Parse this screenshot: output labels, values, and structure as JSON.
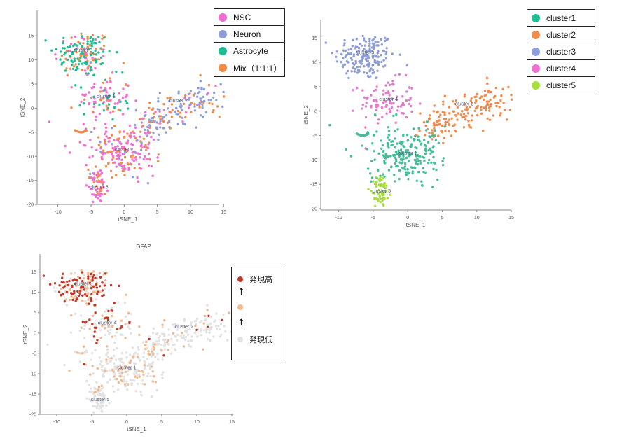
{
  "colors": {
    "NSC": "#ef6fd2",
    "Neuron": "#8f9fdc",
    "Astrocyte": "#1cbf93",
    "Mix": "#f28c4a",
    "cluster1": "#46bd9a",
    "cluster2": "#f08a4b",
    "cluster3": "#8d9dd5",
    "cluster4": "#e27bcc",
    "cluster5": "#a5dd3c",
    "expr_high": "#c0392b",
    "expr_mid": "#f2b98e",
    "expr_low": "#e2e2e2"
  },
  "legend_celltype": {
    "items": [
      {
        "label": "NSC",
        "color": "#ef6fd2"
      },
      {
        "label": "Neuron",
        "color": "#8f9fdc"
      },
      {
        "label": "Astrocyte",
        "color": "#1cbf93"
      },
      {
        "label": "Mix（1:1:1）",
        "color": "#f28c4a"
      }
    ]
  },
  "legend_cluster": {
    "items": [
      {
        "label": "cluster1",
        "color": "#1cbf93"
      },
      {
        "label": "cluster2",
        "color": "#f28c4a"
      },
      {
        "label": "cluster3",
        "color": "#8f9fdc"
      },
      {
        "label": "cluster4",
        "color": "#ef6fd2"
      },
      {
        "label": "cluster5",
        "color": "#a5e03a"
      }
    ]
  },
  "legend_expression": {
    "high_label": "発現高",
    "low_label": "発現低",
    "arrow": "↑"
  },
  "chart_data": [
    {
      "type": "scatter",
      "id": "celltype",
      "title": "",
      "xlabel": "tSNE_1",
      "ylabel": "tSNE_2",
      "xlim": [
        -12.5,
        15.5
      ],
      "ylim": [
        -21,
        17.5
      ],
      "xticks": [
        -10,
        -5,
        0,
        5,
        10,
        15
      ],
      "yticks": [
        15,
        10,
        5,
        0,
        -5,
        -10,
        -15,
        -20
      ],
      "cluster_labels": [
        {
          "text": "cluster 3",
          "x": -6.2,
          "y": 11.7
        },
        {
          "text": "cluster 4",
          "x": -2.8,
          "y": 2.1
        },
        {
          "text": "cluster 2",
          "x": 8.2,
          "y": 1.2
        },
        {
          "text": "cluster 1",
          "x": 0.0,
          "y": -8.9
        },
        {
          "text": "cluster 5",
          "x": -3.8,
          "y": -16.7
        }
      ],
      "series": [
        {
          "name": "NSC",
          "region": "main clusters 4, 1, 5"
        },
        {
          "name": "Neuron",
          "region": "cluster 2"
        },
        {
          "name": "Astrocyte",
          "region": "cluster 3"
        },
        {
          "name": "Mix（1:1:1）",
          "region": "all clusters"
        }
      ]
    },
    {
      "type": "scatter",
      "id": "cluster",
      "title": "",
      "xlabel": "tSNE_1",
      "ylabel": "tSNE_2",
      "xlim": [
        -12.5,
        15.5
      ],
      "ylim": [
        -21,
        17.5
      ],
      "xticks": [
        -10,
        -5,
        0,
        5,
        10,
        15
      ],
      "yticks": [
        15,
        10,
        5,
        0,
        -5,
        -10,
        -15,
        -20
      ],
      "cluster_labels": [
        {
          "text": "cluster 3",
          "x": -6.2,
          "y": 11.7
        },
        {
          "text": "cluster 4",
          "x": -2.8,
          "y": 2.1
        },
        {
          "text": "cluster 2",
          "x": 8.2,
          "y": 1.2
        },
        {
          "text": "cluster 1",
          "x": 0.0,
          "y": -8.9
        },
        {
          "text": "cluster 5",
          "x": -3.8,
          "y": -16.7
        }
      ],
      "series": [
        {
          "name": "cluster1"
        },
        {
          "name": "cluster2"
        },
        {
          "name": "cluster3"
        },
        {
          "name": "cluster4"
        },
        {
          "name": "cluster5"
        }
      ]
    },
    {
      "type": "scatter",
      "id": "gfap",
      "title": "GFAP",
      "xlabel": "tSNE_1",
      "ylabel": "tSNE_2",
      "xlim": [
        -12.5,
        15.5
      ],
      "ylim": [
        -21,
        17.5
      ],
      "xticks": [
        -10,
        -5,
        0,
        5,
        10,
        15
      ],
      "yticks": [
        15,
        10,
        5,
        0,
        -5,
        -10,
        -15,
        -20
      ],
      "cluster_labels": [
        {
          "text": "cluster 3",
          "x": -6.2,
          "y": 11.7
        },
        {
          "text": "cluster 4",
          "x": -2.8,
          "y": 2.1
        },
        {
          "text": "cluster 2",
          "x": 8.2,
          "y": 1.2
        },
        {
          "text": "cluster 1",
          "x": 0.0,
          "y": -8.9
        },
        {
          "text": "cluster 5",
          "x": -3.8,
          "y": -16.7
        }
      ],
      "color_scale": [
        "発現低",
        "発現高"
      ]
    }
  ]
}
